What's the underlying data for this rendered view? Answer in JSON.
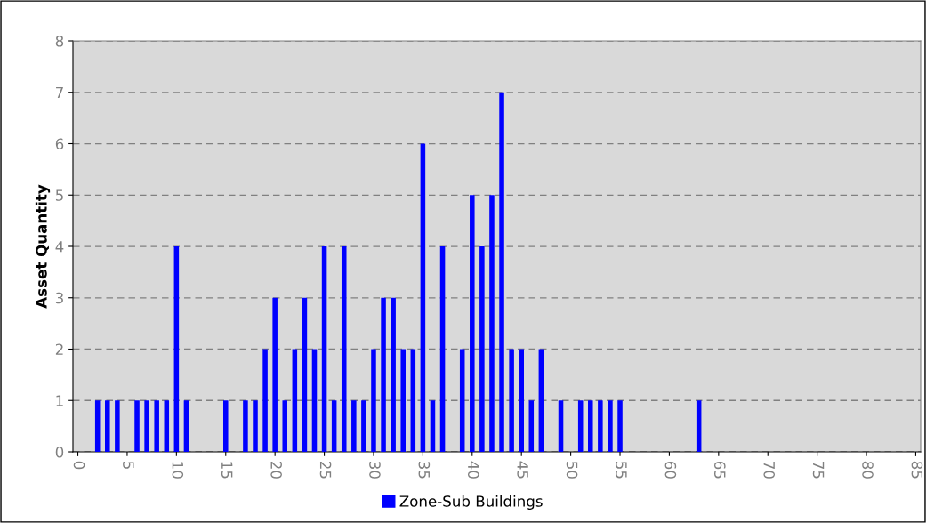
{
  "chart_data": {
    "type": "bar",
    "ylabel": "Asset Quantity",
    "x": [
      0,
      1,
      2,
      3,
      4,
      5,
      6,
      7,
      8,
      9,
      10,
      11,
      12,
      13,
      14,
      15,
      16,
      17,
      18,
      19,
      20,
      21,
      22,
      23,
      24,
      25,
      26,
      27,
      28,
      29,
      30,
      31,
      32,
      33,
      34,
      35,
      36,
      37,
      38,
      39,
      40,
      41,
      42,
      43,
      44,
      45,
      46,
      47,
      48,
      49,
      50,
      51,
      52,
      53,
      54,
      55,
      56,
      57,
      58,
      59,
      60,
      61,
      62,
      63,
      64,
      65,
      66,
      67,
      68,
      69,
      70,
      71,
      72,
      73,
      74,
      75,
      76,
      77,
      78,
      79,
      80,
      81,
      82,
      83,
      84,
      85
    ],
    "series": [
      {
        "name": "Zone-Sub Buildings",
        "color": "#0000ff",
        "values": [
          0,
          0,
          1,
          1,
          1,
          0,
          1,
          1,
          1,
          1,
          4,
          1,
          0,
          0,
          0,
          1,
          0,
          1,
          1,
          2,
          3,
          1,
          2,
          3,
          2,
          4,
          1,
          4,
          1,
          1,
          2,
          3,
          3,
          2,
          2,
          6,
          1,
          4,
          0,
          2,
          5,
          4,
          5,
          7,
          2,
          2,
          1,
          2,
          0,
          1,
          0,
          1,
          1,
          1,
          1,
          1,
          0,
          0,
          0,
          0,
          0,
          0,
          0,
          1,
          0,
          0,
          0,
          0,
          0,
          0,
          0,
          0,
          0,
          0,
          0,
          0,
          0,
          0,
          0,
          0,
          0,
          0,
          0,
          0,
          0,
          0
        ]
      }
    ],
    "xlim": [
      -0.5,
      85.5
    ],
    "xticks": [
      0,
      5,
      10,
      15,
      20,
      25,
      30,
      35,
      40,
      45,
      50,
      55,
      60,
      65,
      70,
      75,
      80,
      85
    ],
    "ylim": [
      0,
      8
    ],
    "yticks": [
      0,
      1,
      2,
      3,
      4,
      5,
      6,
      7,
      8
    ],
    "grid": "y",
    "legend": "bottom"
  }
}
